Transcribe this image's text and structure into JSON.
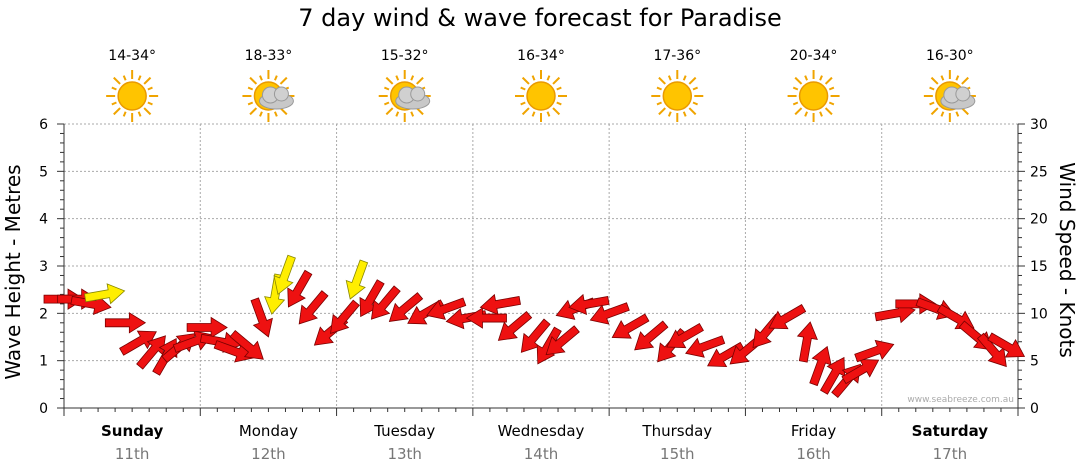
{
  "title": "7 day wind & wave forecast for Paradise",
  "watermark": "www.seabreeze.com.au",
  "colors": {
    "arrow_red": "#ee1111",
    "arrow_yellow": "#ffee00",
    "grid": "#aaaaaa"
  },
  "chart_data": {
    "type": "line",
    "left_axis": {
      "label": "Wave Height - Metres",
      "range": [
        0,
        6
      ],
      "ticks": [
        "0",
        "1",
        "2",
        "3",
        "4",
        "5",
        "6"
      ]
    },
    "right_axis": {
      "label": "Wind Speed - Knots",
      "range": [
        0,
        30
      ],
      "ticks": [
        "0",
        "5",
        "10",
        "15",
        "20",
        "25",
        "30"
      ]
    },
    "days": [
      {
        "name": "Sunday",
        "date": "11th",
        "temp": "14-34°",
        "icon": "sun-icon",
        "bold": true
      },
      {
        "name": "Monday",
        "date": "12th",
        "temp": "18-33°",
        "icon": "sun-cloud-icon",
        "bold": false
      },
      {
        "name": "Tuesday",
        "date": "13th",
        "temp": "15-32°",
        "icon": "sun-cloud-icon",
        "bold": false
      },
      {
        "name": "Wednesday",
        "date": "14th",
        "temp": "16-34°",
        "icon": "sun-icon",
        "bold": false
      },
      {
        "name": "Thursday",
        "date": "15th",
        "temp": "17-36°",
        "icon": "sun-icon",
        "bold": false
      },
      {
        "name": "Friday",
        "date": "16th",
        "temp": "20-34°",
        "icon": "sun-icon",
        "bold": false
      },
      {
        "name": "Saturday",
        "date": "17th",
        "temp": "16-30°",
        "icon": "sun-cloud-icon",
        "bold": true
      }
    ],
    "wind_series": {
      "name": "Wind",
      "points": [
        {
          "t": 0.0,
          "knots": 11.5,
          "dir": 90,
          "strong": false
        },
        {
          "t": 0.1,
          "knots": 11.5,
          "dir": 90,
          "strong": false
        },
        {
          "t": 0.2,
          "knots": 11.0,
          "dir": 100,
          "strong": false
        },
        {
          "t": 0.3,
          "knots": 12.0,
          "dir": 80,
          "strong": true
        },
        {
          "t": 0.45,
          "knots": 9.0,
          "dir": 90,
          "strong": false
        },
        {
          "t": 0.55,
          "knots": 7.0,
          "dir": 60,
          "strong": false
        },
        {
          "t": 0.65,
          "knots": 6.0,
          "dir": 40,
          "strong": false
        },
        {
          "t": 0.75,
          "knots": 5.5,
          "dir": 30,
          "strong": false
        },
        {
          "t": 0.85,
          "knots": 6.5,
          "dir": 50,
          "strong": false
        },
        {
          "t": 0.95,
          "knots": 7.0,
          "dir": 70,
          "strong": false
        },
        {
          "t": 1.05,
          "knots": 8.5,
          "dir": 90,
          "strong": false
        },
        {
          "t": 1.15,
          "knots": 7.0,
          "dir": 100,
          "strong": false
        },
        {
          "t": 1.25,
          "knots": 6.0,
          "dir": 110,
          "strong": false
        },
        {
          "t": 1.35,
          "knots": 6.5,
          "dir": 130,
          "strong": false
        },
        {
          "t": 1.45,
          "knots": 9.5,
          "dir": 160,
          "strong": false
        },
        {
          "t": 1.55,
          "knots": 12.0,
          "dir": 190,
          "strong": true
        },
        {
          "t": 1.62,
          "knots": 14.0,
          "dir": 200,
          "strong": true
        },
        {
          "t": 1.72,
          "knots": 12.5,
          "dir": 210,
          "strong": false
        },
        {
          "t": 1.82,
          "knots": 10.5,
          "dir": 220,
          "strong": false
        },
        {
          "t": 1.95,
          "knots": 8.0,
          "dir": 230,
          "strong": false
        },
        {
          "t": 2.05,
          "knots": 9.5,
          "dir": 220,
          "strong": false
        },
        {
          "t": 2.15,
          "knots": 13.5,
          "dir": 200,
          "strong": true
        },
        {
          "t": 2.25,
          "knots": 11.5,
          "dir": 210,
          "strong": false
        },
        {
          "t": 2.35,
          "knots": 11.0,
          "dir": 220,
          "strong": false
        },
        {
          "t": 2.5,
          "knots": 10.5,
          "dir": 230,
          "strong": false
        },
        {
          "t": 2.65,
          "knots": 10.0,
          "dir": 240,
          "strong": false
        },
        {
          "t": 2.8,
          "knots": 10.5,
          "dir": 250,
          "strong": false
        },
        {
          "t": 2.95,
          "knots": 9.5,
          "dir": 260,
          "strong": false
        },
        {
          "t": 3.1,
          "knots": 9.5,
          "dir": 270,
          "strong": false
        },
        {
          "t": 3.2,
          "knots": 11.0,
          "dir": 260,
          "strong": false
        },
        {
          "t": 3.3,
          "knots": 8.5,
          "dir": 230,
          "strong": false
        },
        {
          "t": 3.45,
          "knots": 7.5,
          "dir": 220,
          "strong": false
        },
        {
          "t": 3.55,
          "knots": 6.5,
          "dir": 210,
          "strong": false
        },
        {
          "t": 3.65,
          "knots": 7.0,
          "dir": 230,
          "strong": false
        },
        {
          "t": 3.75,
          "knots": 10.5,
          "dir": 250,
          "strong": false
        },
        {
          "t": 3.85,
          "knots": 11.0,
          "dir": 260,
          "strong": false
        },
        {
          "t": 4.0,
          "knots": 10.0,
          "dir": 250,
          "strong": false
        },
        {
          "t": 4.15,
          "knots": 8.5,
          "dir": 240,
          "strong": false
        },
        {
          "t": 4.3,
          "knots": 7.5,
          "dir": 230,
          "strong": false
        },
        {
          "t": 4.45,
          "knots": 6.5,
          "dir": 220,
          "strong": false
        },
        {
          "t": 4.55,
          "knots": 7.5,
          "dir": 240,
          "strong": false
        },
        {
          "t": 4.7,
          "knots": 6.5,
          "dir": 250,
          "strong": false
        },
        {
          "t": 4.85,
          "knots": 5.5,
          "dir": 240,
          "strong": false
        },
        {
          "t": 5.0,
          "knots": 6.0,
          "dir": 230,
          "strong": false
        },
        {
          "t": 5.15,
          "knots": 8.0,
          "dir": 220,
          "strong": false
        },
        {
          "t": 5.3,
          "knots": 9.5,
          "dir": 240,
          "strong": false
        },
        {
          "t": 5.45,
          "knots": 7.0,
          "dir": 10,
          "strong": false
        },
        {
          "t": 5.55,
          "knots": 4.5,
          "dir": 20,
          "strong": false
        },
        {
          "t": 5.65,
          "knots": 3.5,
          "dir": 30,
          "strong": false
        },
        {
          "t": 5.75,
          "knots": 3.0,
          "dir": 40,
          "strong": false
        },
        {
          "t": 5.85,
          "knots": 4.0,
          "dir": 60,
          "strong": false
        },
        {
          "t": 5.95,
          "knots": 6.0,
          "dir": 70,
          "strong": false
        },
        {
          "t": 6.1,
          "knots": 10.0,
          "dir": 80,
          "strong": false
        },
        {
          "t": 6.25,
          "knots": 11.0,
          "dir": 90,
          "strong": false
        },
        {
          "t": 6.4,
          "knots": 10.5,
          "dir": 110,
          "strong": false
        },
        {
          "t": 6.55,
          "knots": 9.5,
          "dir": 120,
          "strong": false
        },
        {
          "t": 6.7,
          "knots": 7.5,
          "dir": 130,
          "strong": false
        },
        {
          "t": 6.82,
          "knots": 6.0,
          "dir": 140,
          "strong": false
        },
        {
          "t": 6.92,
          "knots": 6.5,
          "dir": 120,
          "strong": false
        }
      ]
    },
    "grid": true
  }
}
